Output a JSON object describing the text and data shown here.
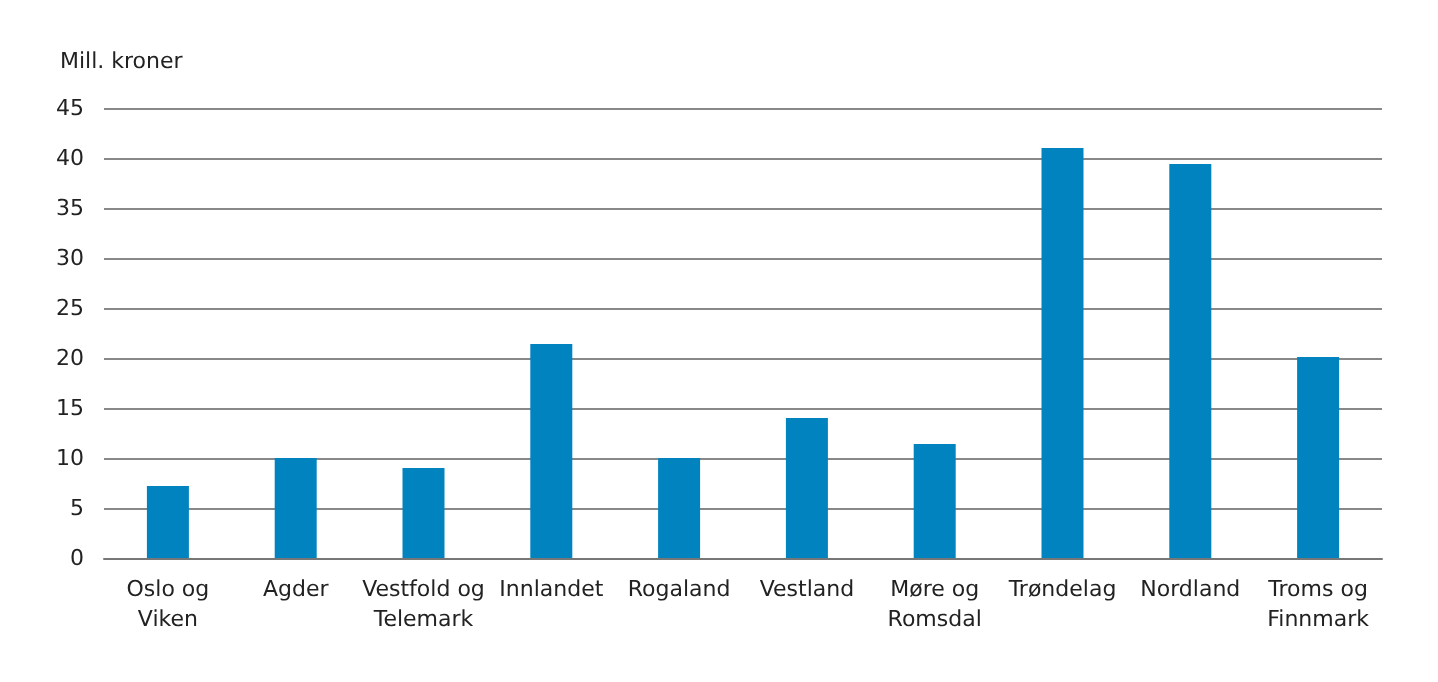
{
  "chart_data": {
    "type": "bar",
    "ylabel": "Mill. kroner",
    "categories": [
      "Oslo og Viken",
      "Agder",
      "Vestfold og Telemark",
      "Innlandet",
      "Rogaland",
      "Vestland",
      "Møre og Romsdal",
      "Trøndelag",
      "Nordland",
      "Troms og Finnmark"
    ],
    "values": [
      7.2,
      10,
      9,
      21.4,
      10,
      14,
      11.4,
      41,
      39.4,
      20.1
    ],
    "color": "#0083bf",
    "ylim": [
      0,
      45
    ],
    "yticks": [
      0,
      5,
      10,
      15,
      20,
      25,
      30,
      35,
      40,
      45
    ],
    "grid": "y"
  }
}
